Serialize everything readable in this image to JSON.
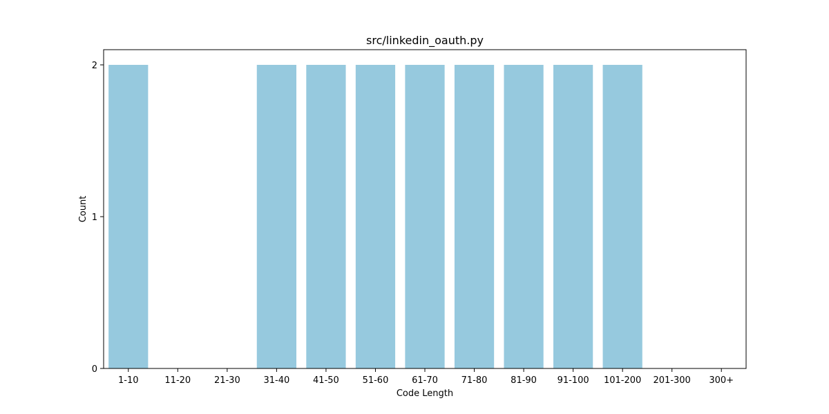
{
  "chart_data": {
    "type": "bar",
    "title": "src/linkedin_oauth.py",
    "xlabel": "Code Length",
    "ylabel": "Count",
    "categories": [
      "1-10",
      "11-20",
      "21-30",
      "31-40",
      "41-50",
      "51-60",
      "61-70",
      "71-80",
      "81-90",
      "91-100",
      "101-200",
      "201-300",
      "300+"
    ],
    "values": [
      2,
      0,
      0,
      2,
      2,
      2,
      2,
      2,
      2,
      2,
      2,
      0,
      0
    ],
    "ylim": [
      0,
      2.1
    ],
    "yticks": [
      0,
      1,
      2
    ],
    "bar_color": "#96c9de",
    "grid": false,
    "legend": "none"
  }
}
